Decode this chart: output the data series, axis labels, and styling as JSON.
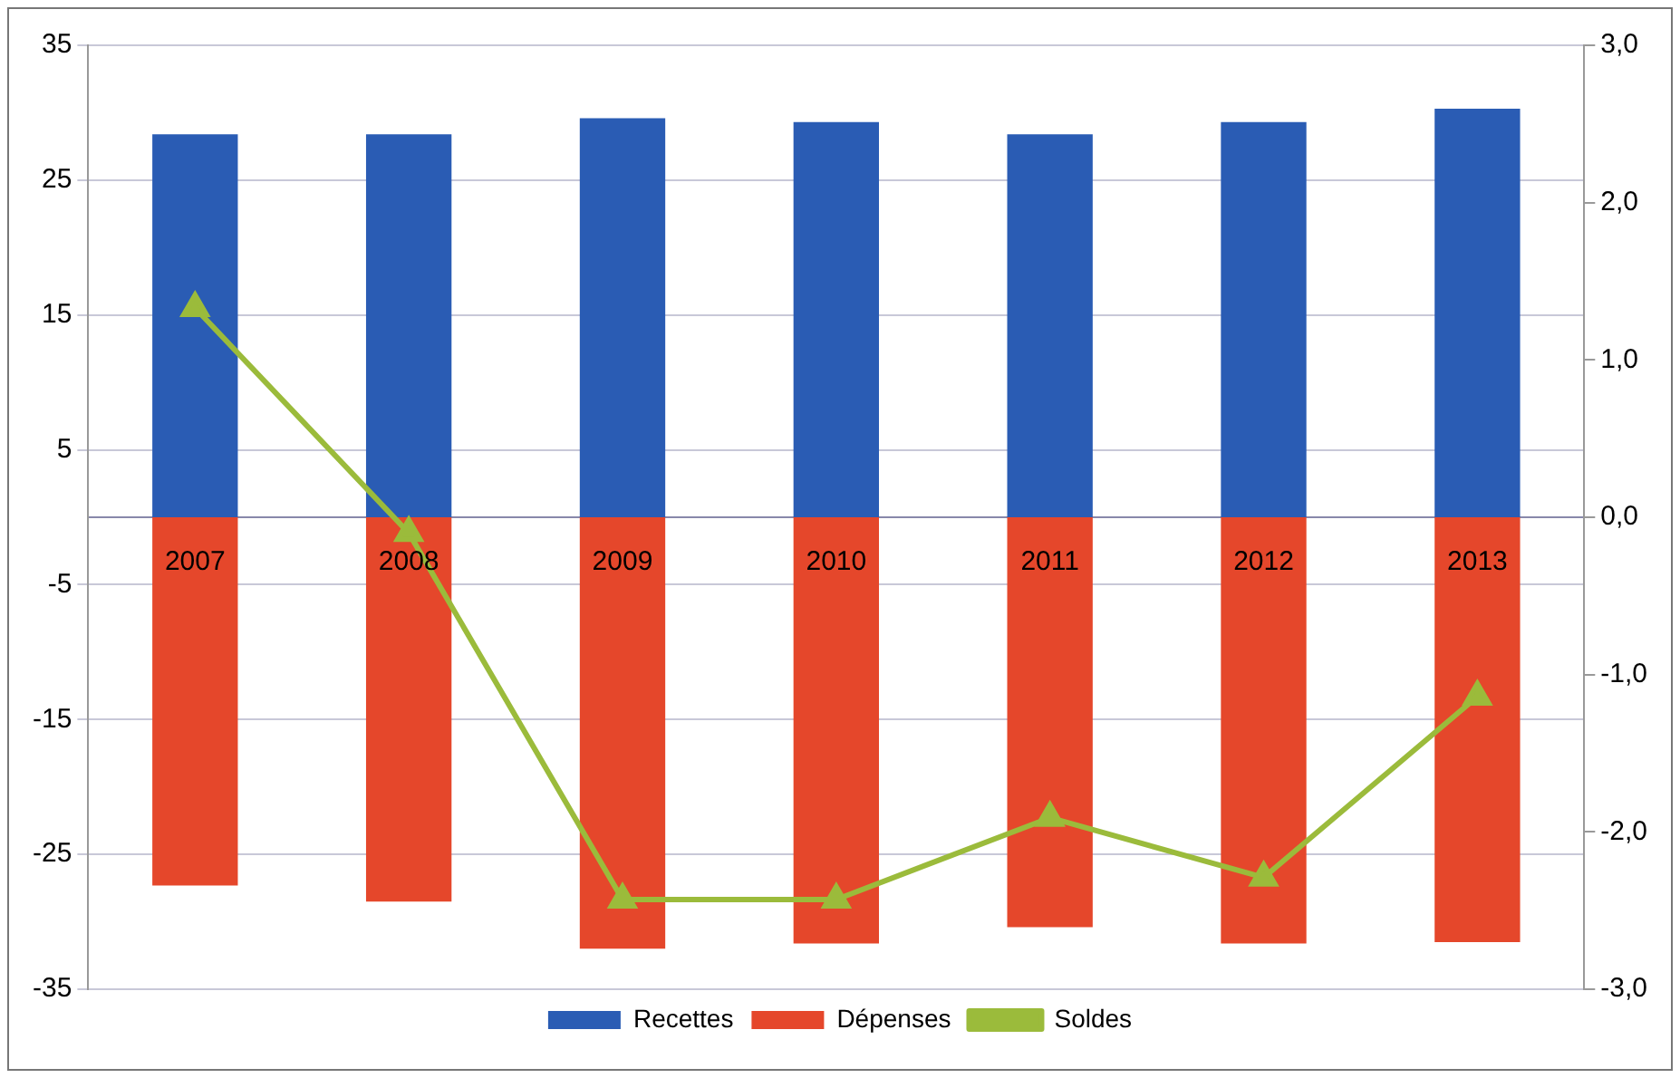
{
  "chart_data": {
    "type": "bar",
    "stacked": true,
    "categories": [
      "2007",
      "2008",
      "2009",
      "2010",
      "2011",
      "2012",
      "2013"
    ],
    "series": [
      {
        "name": "Recettes",
        "color": "#2a5cb4",
        "values": [
          28.4,
          28.4,
          29.6,
          29.3,
          28.4,
          29.3,
          30.3
        ]
      },
      {
        "name": "Dépenses",
        "color": "#e5472b",
        "values": [
          -27.3,
          -28.5,
          -32.0,
          -31.6,
          -30.4,
          -31.6,
          -31.5
        ]
      },
      {
        "name": "Soldes",
        "type": "line",
        "axis": "y2",
        "color": "#9bbb3b",
        "marker": "triangle",
        "values": [
          1.33,
          -0.1,
          -2.43,
          -2.43,
          -1.91,
          -2.29,
          -1.14
        ]
      }
    ],
    "ylim": [
      -35,
      35
    ],
    "yticks": [
      -35,
      -25,
      -15,
      -5,
      5,
      15,
      25,
      35
    ],
    "y2lim": [
      -3,
      3
    ],
    "y2ticks": [
      {
        "value": -3,
        "label": "-3,0"
      },
      {
        "value": -2,
        "label": "-2,0"
      },
      {
        "value": -1,
        "label": "-1,0"
      },
      {
        "value": 0,
        "label": "0,0"
      },
      {
        "value": 1,
        "label": "1,0"
      },
      {
        "value": 2,
        "label": "2,0"
      },
      {
        "value": 3,
        "label": "3,0"
      }
    ],
    "grid": "y",
    "legend": "bottom"
  }
}
